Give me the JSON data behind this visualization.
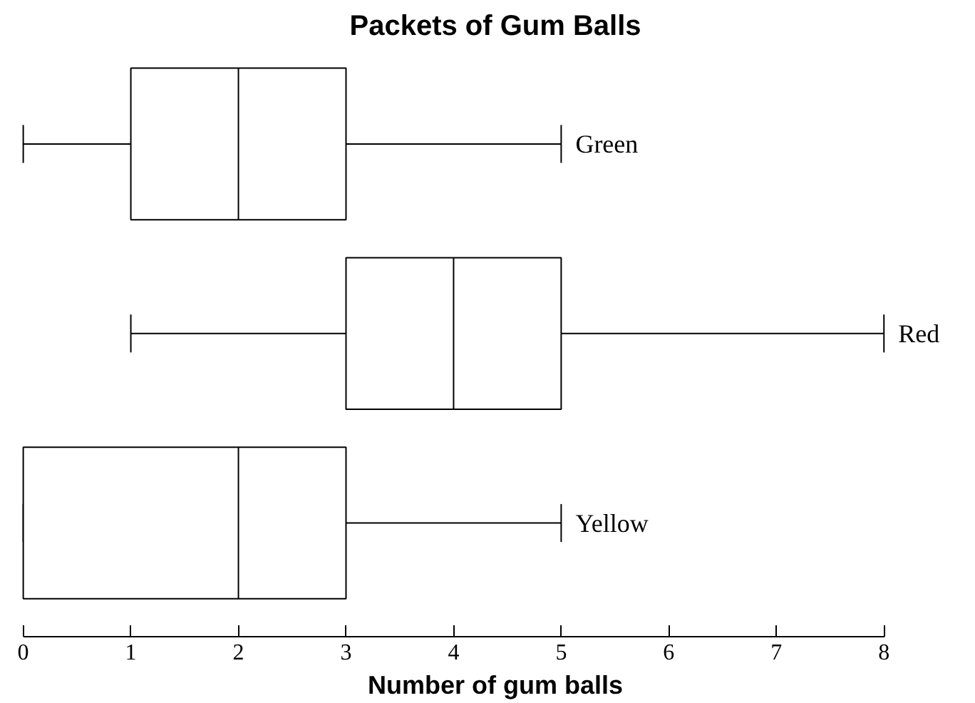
{
  "chart_data": {
    "type": "box",
    "orientation": "horizontal",
    "title": "Packets of Gum Balls",
    "xlabel": "Number of gum balls",
    "categories": [
      "Green",
      "Red",
      "Yellow"
    ],
    "boxes": [
      {
        "low": 0,
        "q1": 1,
        "median": 2,
        "q3": 3,
        "high": 5
      },
      {
        "low": 1,
        "q1": 3,
        "median": 4,
        "q3": 5,
        "high": 8
      },
      {
        "low": 0,
        "q1": 0,
        "median": 2,
        "q3": 3,
        "high": 5
      }
    ],
    "color": "#000000",
    "xlim": [
      0,
      8
    ],
    "xticks": [
      0,
      1,
      2,
      3,
      4,
      5,
      6,
      7,
      8
    ],
    "grid": false,
    "tick_labels": "x"
  }
}
